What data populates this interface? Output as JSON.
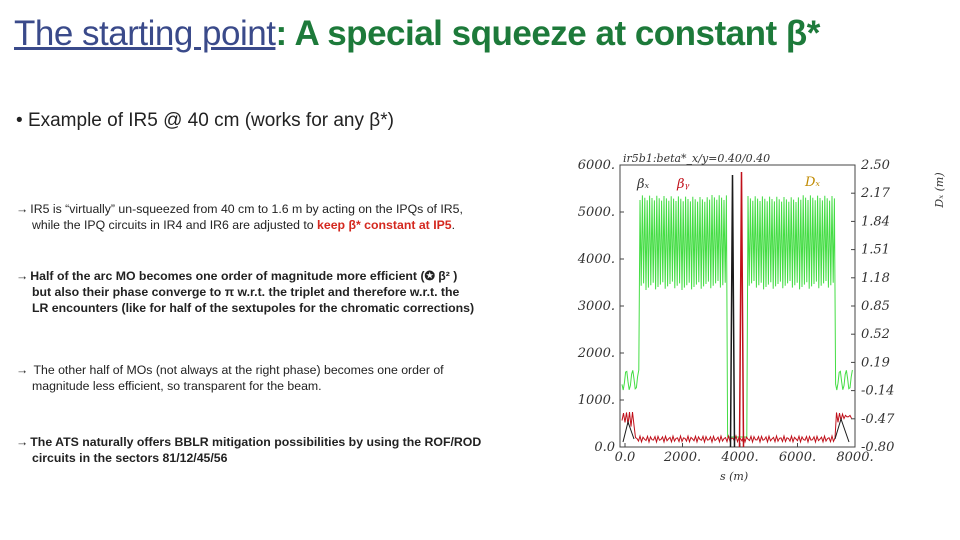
{
  "title": {
    "part1": "The starting point",
    "part2": ": A special squeeze at constant β*"
  },
  "subtitle": "Example of IR5 @ 40 cm (works for any β*)",
  "bullets": {
    "b1": {
      "line1": "IR5 is “virtually” un-squeezed from 40 cm to 1.6 m by acting on the IPQs of IR5,",
      "line2a": "while the IPQ circuits in IR4 and IR6 are adjusted to ",
      "line2b": "keep β* constant at IP5",
      "line2c": "."
    },
    "b2": {
      "line1": "Half of the arc MO becomes one order of magnitude more efficient (✪ β² )",
      "line2": "but also their phase converge to π w.r.t. the triplet and therefore w.r.t. the",
      "line3": "LR encounters (like for half of the sextupoles for the chromatic corrections)"
    },
    "b3": {
      "line1": " The other half of MOs (not always at the right phase) becomes one order of",
      "line2": "magnitude less efficient, so transparent for the beam."
    },
    "b4": {
      "line1": "The ATS naturally offers BBLR mitigation possibilities by using the ROF/ROD",
      "line2": "circuits in the sectors 81/12/45/56"
    }
  },
  "plot": {
    "header": "ir5b1:beta*_x/y=0.40/0.40",
    "legend_bx": "βₓ",
    "legend_by": "βᵧ",
    "legend_dx": "Dₓ",
    "y_left_ticks": [
      "6000.",
      "5000.",
      "4000.",
      "3000.",
      "2000.",
      "1000.",
      "0.0"
    ],
    "y_right_ticks": [
      "2.50",
      "2.17",
      "1.84",
      "1.51",
      "1.18",
      "0.85",
      "0.52",
      "0.19",
      "-0.14",
      "-0.47",
      "-0.80"
    ],
    "x_ticks": [
      "0.0",
      "2000.",
      "4000.",
      "6000.",
      "8000."
    ],
    "x_label": "s (m)",
    "y_right_label": "Dₓ (m)",
    "colors": {
      "bx": "#1a1a1a",
      "by": "#c0101a",
      "dx": "#44dd44"
    }
  }
}
